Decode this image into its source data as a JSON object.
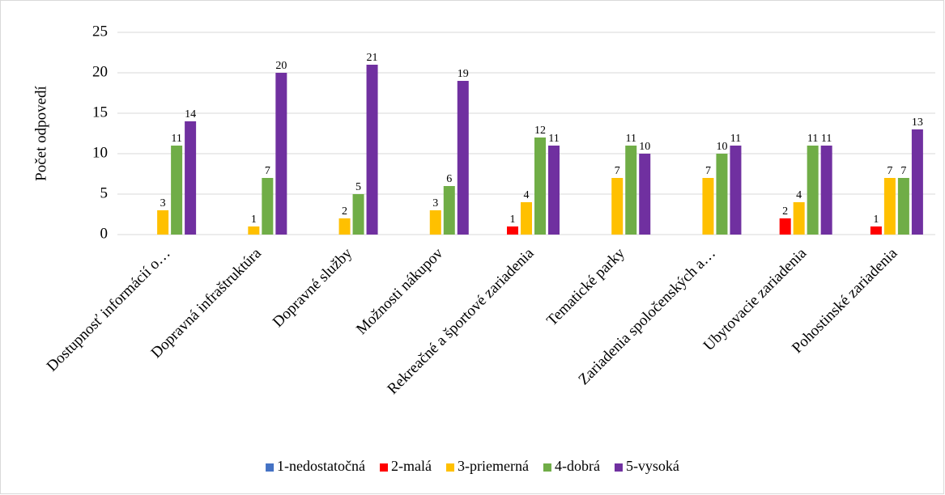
{
  "chart_data": {
    "type": "bar",
    "y_label": "Počet odpovedí",
    "categories": [
      "Dostupnosť informácií o…",
      "Dopravná infraštruktúra",
      "Dopravné služby",
      "Možnosti nákupov",
      "Rekreačné a športové zariadenia",
      "Tematické parky",
      "Zariadenia spoločenských a…",
      "Ubytovacie zariadenia",
      "Pohostinské zariadenia"
    ],
    "series": [
      {
        "name": "1-nedostatočná",
        "color": "#4472c4",
        "values": [
          null,
          null,
          null,
          null,
          null,
          null,
          null,
          null,
          null
        ]
      },
      {
        "name": "2-malá",
        "color": "#ff0000",
        "values": [
          null,
          null,
          null,
          null,
          1,
          null,
          null,
          2,
          1
        ]
      },
      {
        "name": "3-priemerná",
        "color": "#ffc000",
        "values": [
          3,
          1,
          2,
          3,
          4,
          7,
          7,
          4,
          7
        ]
      },
      {
        "name": "4-dobrá",
        "color": "#70ad47",
        "values": [
          11,
          7,
          5,
          6,
          12,
          11,
          10,
          11,
          7
        ]
      },
      {
        "name": "5-vysoká",
        "color": "#7030a0",
        "values": [
          14,
          20,
          21,
          19,
          11,
          10,
          11,
          11,
          13
        ]
      }
    ],
    "ylim": [
      0,
      25
    ],
    "yticks": [
      0,
      5,
      10,
      15,
      20,
      25
    ],
    "grid": true,
    "legend": "bottom"
  }
}
